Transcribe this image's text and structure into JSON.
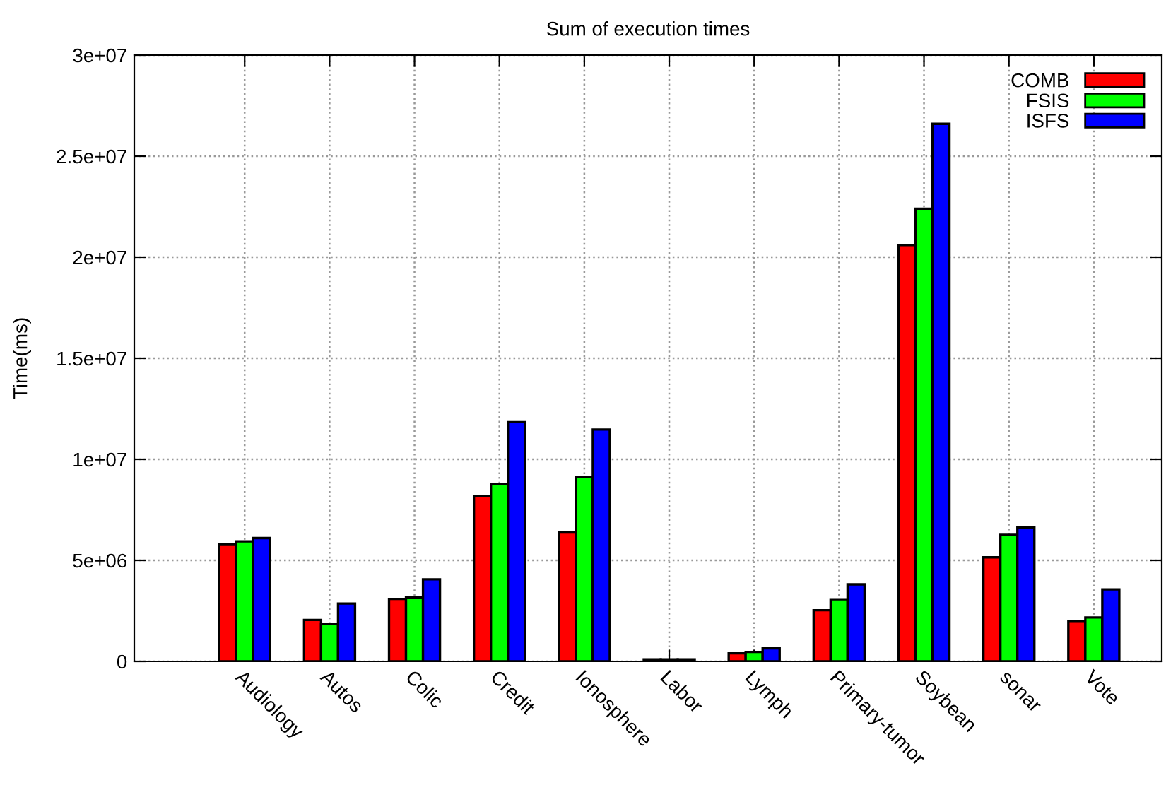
{
  "chart_data": {
    "type": "bar",
    "title": "Sum of execution times",
    "ylabel": "Time(ms)",
    "categories": [
      "Audiology",
      "Autos",
      "Colic",
      "Credit",
      "Ionosphere",
      "Labor",
      "Lymph",
      "Primary-tumor",
      "Soybean",
      "sonar",
      "Vote"
    ],
    "series": [
      {
        "name": "COMB",
        "color": "#ff0000",
        "values": [
          5800000,
          2050000,
          3090000,
          8180000,
          6380000,
          100000,
          400000,
          2530000,
          20600000,
          5150000,
          2000000
        ]
      },
      {
        "name": "FSIS",
        "color": "#00ff00",
        "values": [
          5940000,
          1840000,
          3160000,
          8780000,
          9110000,
          100000,
          470000,
          3070000,
          22400000,
          6260000,
          2170000
        ]
      },
      {
        "name": "ISFS",
        "color": "#0000ff",
        "values": [
          6100000,
          2860000,
          4060000,
          11840000,
          11470000,
          100000,
          640000,
          3810000,
          26600000,
          6630000,
          3560000
        ]
      }
    ],
    "ylim": [
      0,
      30000000
    ],
    "yticks": [
      {
        "value": 0,
        "label": "0"
      },
      {
        "value": 5000000,
        "label": "5e+06"
      },
      {
        "value": 10000000,
        "label": "1e+07"
      },
      {
        "value": 15000000,
        "label": "1.5e+07"
      },
      {
        "value": 20000000,
        "label": "2e+07"
      },
      {
        "value": 25000000,
        "label": "2.5e+07"
      },
      {
        "value": 30000000,
        "label": "3e+07"
      }
    ],
    "grid": true,
    "legend": "top right"
  }
}
